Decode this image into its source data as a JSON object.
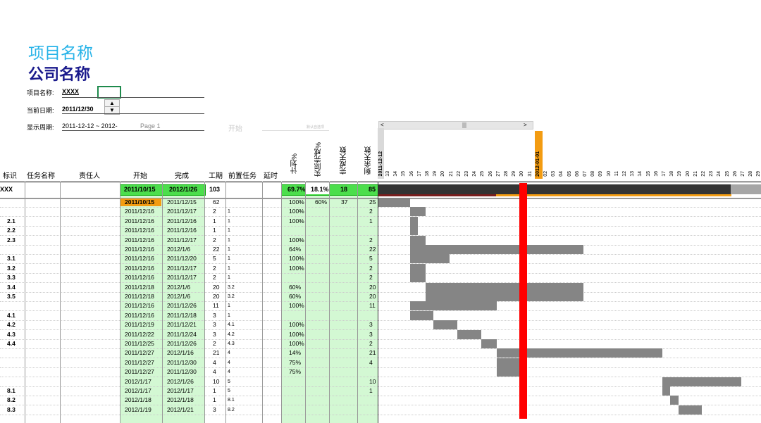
{
  "header": {
    "project_title": "项目名称",
    "company_title": "公司名称",
    "project_label": "项目名称:",
    "project_value": "XXXX",
    "date_label": "当前日期:",
    "date_value": "2011/12/30",
    "period_label": "显示周期:",
    "period_value": "2011-12-12 ~ 2012-",
    "page_label": "Page 1",
    "start_label": "开始",
    "note_label": "默认自选项",
    "spin_up": "▲",
    "spin_down": "▼",
    "scroll_left": "<",
    "scroll_right": ">"
  },
  "columns": {
    "id": "标识",
    "task": "任务名称",
    "owner": "责任人",
    "start": "开始",
    "finish": "完成",
    "duration": "工期",
    "predecessor": "前置任务",
    "delay": "延时",
    "plan_pct": "计划%",
    "actual_pct": "实际完成%",
    "done_days": "完成天数",
    "remain_days": "剩余天数"
  },
  "timeline": {
    "date_start": "2011-12-12",
    "date_year": "2012-01-01",
    "days": [
      "13",
      "14",
      "15",
      "16",
      "17",
      "18",
      "19",
      "20",
      "21",
      "22",
      "23",
      "24",
      "25",
      "26",
      "27",
      "28",
      "29",
      "30",
      "31",
      "",
      "02",
      "03",
      "04",
      "05",
      "06",
      "07",
      "08",
      "09",
      "10",
      "11",
      "12",
      "13",
      "14",
      "15",
      "16",
      "17",
      "18",
      "19",
      "20",
      "21",
      "22",
      "23",
      "24",
      "25",
      "26",
      "27",
      "28",
      "29"
    ]
  },
  "summary": {
    "id": "XXX",
    "start": "2011/10/15",
    "finish": "2012/1/26",
    "duration": "103",
    "plan": "69.7%",
    "actual": "18.1%",
    "done": "18",
    "remain": "85"
  },
  "rows": [
    {
      "id": "",
      "start": "2011/10/15",
      "finish": "2011/12/15",
      "dur": "62",
      "pred": "",
      "plan": "100%",
      "actual": "60%",
      "done": "37",
      "remain": "25",
      "bar": [
        0,
        4
      ]
    },
    {
      "id": "",
      "start": "2011/12/16",
      "finish": "2011/12/17",
      "dur": "2",
      "pred": "1",
      "plan": "100%",
      "actual": "",
      "done": "",
      "remain": "2",
      "bar": [
        4,
        6
      ]
    },
    {
      "id": "2.1",
      "start": "2011/12/16",
      "finish": "2011/12/16",
      "dur": "1",
      "pred": "1",
      "plan": "100%",
      "actual": "",
      "done": "",
      "remain": "1",
      "bar": [
        4,
        5
      ]
    },
    {
      "id": "2.2",
      "start": "2011/12/16",
      "finish": "2011/12/16",
      "dur": "1",
      "pred": "1",
      "plan": "",
      "actual": "",
      "done": "",
      "remain": "",
      "bar": [
        4,
        5
      ]
    },
    {
      "id": "2.3",
      "start": "2011/12/16",
      "finish": "2011/12/17",
      "dur": "2",
      "pred": "1",
      "plan": "100%",
      "actual": "",
      "done": "",
      "remain": "2",
      "bar": [
        4,
        6
      ]
    },
    {
      "id": "",
      "start": "2011/12/16",
      "finish": "2012/1/6",
      "dur": "22",
      "pred": "1",
      "plan": "64%",
      "actual": "",
      "done": "",
      "remain": "22",
      "bar": [
        4,
        26
      ]
    },
    {
      "id": "3.1",
      "start": "2011/12/16",
      "finish": "2011/12/20",
      "dur": "5",
      "pred": "1",
      "plan": "100%",
      "actual": "",
      "done": "",
      "remain": "5",
      "bar": [
        4,
        9
      ]
    },
    {
      "id": "3.2",
      "start": "2011/12/16",
      "finish": "2011/12/17",
      "dur": "2",
      "pred": "1",
      "plan": "100%",
      "actual": "",
      "done": "",
      "remain": "2",
      "bar": [
        4,
        6
      ]
    },
    {
      "id": "3.3",
      "start": "2011/12/16",
      "finish": "2011/12/17",
      "dur": "2",
      "pred": "1",
      "plan": "",
      "actual": "",
      "done": "",
      "remain": "2",
      "bar": [
        4,
        6
      ]
    },
    {
      "id": "3.4",
      "start": "2011/12/18",
      "finish": "2012/1/6",
      "dur": "20",
      "pred": "3.2",
      "plan": "60%",
      "actual": "",
      "done": "",
      "remain": "20",
      "bar": [
        6,
        26
      ]
    },
    {
      "id": "3.5",
      "start": "2011/12/18",
      "finish": "2012/1/6",
      "dur": "20",
      "pred": "3.2",
      "plan": "60%",
      "actual": "",
      "done": "",
      "remain": "20",
      "bar": [
        6,
        26
      ]
    },
    {
      "id": "",
      "start": "2011/12/16",
      "finish": "2011/12/26",
      "dur": "11",
      "pred": "1",
      "plan": "100%",
      "actual": "",
      "done": "",
      "remain": "11",
      "bar": [
        4,
        15
      ]
    },
    {
      "id": "4.1",
      "start": "2011/12/16",
      "finish": "2011/12/18",
      "dur": "3",
      "pred": "1",
      "plan": "",
      "actual": "",
      "done": "",
      "remain": "",
      "bar": [
        4,
        7
      ]
    },
    {
      "id": "4.2",
      "start": "2011/12/19",
      "finish": "2011/12/21",
      "dur": "3",
      "pred": "4.1",
      "plan": "100%",
      "actual": "",
      "done": "",
      "remain": "3",
      "bar": [
        7,
        10
      ]
    },
    {
      "id": "4.3",
      "start": "2011/12/22",
      "finish": "2011/12/24",
      "dur": "3",
      "pred": "4.2",
      "plan": "100%",
      "actual": "",
      "done": "",
      "remain": "3",
      "bar": [
        10,
        13
      ]
    },
    {
      "id": "4.4",
      "start": "2011/12/25",
      "finish": "2011/12/26",
      "dur": "2",
      "pred": "4.3",
      "plan": "100%",
      "actual": "",
      "done": "",
      "remain": "2",
      "bar": [
        13,
        15
      ]
    },
    {
      "id": "",
      "start": "2011/12/27",
      "finish": "2012/1/16",
      "dur": "21",
      "pred": "4",
      "plan": "14%",
      "actual": "",
      "done": "",
      "remain": "21",
      "bar": [
        15,
        36
      ]
    },
    {
      "id": "",
      "start": "2011/12/27",
      "finish": "2011/12/30",
      "dur": "4",
      "pred": "4",
      "plan": "75%",
      "actual": "",
      "done": "",
      "remain": "4",
      "bar": [
        15,
        18
      ]
    },
    {
      "id": "",
      "start": "2011/12/27",
      "finish": "2011/12/30",
      "dur": "4",
      "pred": "4",
      "plan": "75%",
      "actual": "",
      "done": "",
      "remain": "",
      "bar": [
        15,
        18
      ]
    },
    {
      "id": "",
      "start": "2012/1/17",
      "finish": "2012/1/26",
      "dur": "10",
      "pred": "5",
      "plan": "",
      "actual": "",
      "done": "",
      "remain": "10",
      "bar": [
        36,
        46
      ]
    },
    {
      "id": "8.1",
      "start": "2012/1/17",
      "finish": "2012/1/17",
      "dur": "1",
      "pred": "5",
      "plan": "",
      "actual": "",
      "done": "",
      "remain": "1",
      "bar": [
        36,
        37
      ]
    },
    {
      "id": "8.2",
      "start": "2012/1/18",
      "finish": "2012/1/18",
      "dur": "1",
      "pred": "8.1",
      "plan": "",
      "actual": "",
      "done": "",
      "remain": "",
      "bar": [
        37,
        38
      ]
    },
    {
      "id": "8.3",
      "start": "2012/1/19",
      "finish": "2012/1/21",
      "dur": "3",
      "pred": "8.2",
      "plan": "",
      "actual": "",
      "done": "",
      "remain": "",
      "bar": [
        38,
        41
      ]
    }
  ]
}
